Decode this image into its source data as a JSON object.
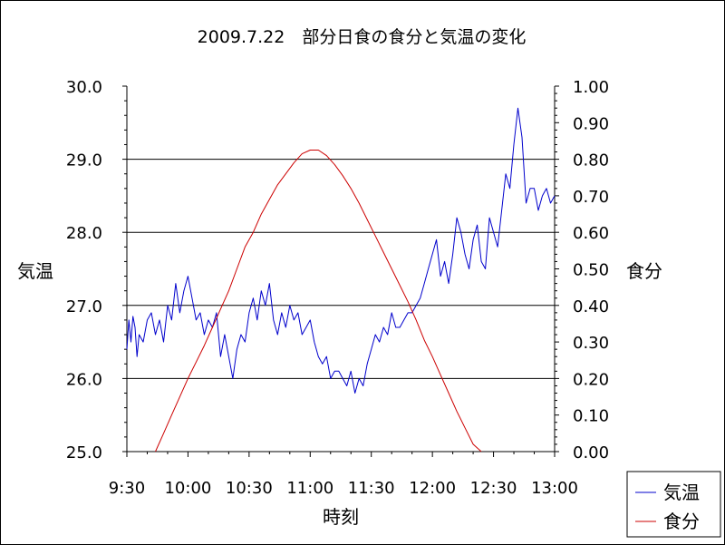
{
  "chart_data": {
    "type": "line",
    "title": "2009.7.22　部分日食の食分と気温の変化",
    "xlabel": "時刻",
    "y_left_label": "気温",
    "y_right_label": "食分",
    "x_ticks": [
      "9:30",
      "10:00",
      "10:30",
      "11:00",
      "11:30",
      "12:00",
      "12:30",
      "13:00"
    ],
    "x_range_minutes": [
      570,
      780
    ],
    "y_left_ticks": [
      "25.0",
      "26.0",
      "27.0",
      "28.0",
      "29.0",
      "30.0"
    ],
    "y_left_range": [
      25.0,
      30.0
    ],
    "y_right_ticks": [
      "0.00",
      "0.10",
      "0.20",
      "0.30",
      "0.40",
      "0.50",
      "0.60",
      "0.70",
      "0.80",
      "0.90",
      "1.00"
    ],
    "y_right_range": [
      0.0,
      1.0
    ],
    "grid": "horizontal at 26.0, 27.0, 28.0, 29.0",
    "legend_position": "bottom-right",
    "series": [
      {
        "name": "気温",
        "axis": "left",
        "color": "#0000cc",
        "x": [
          "9:30",
          "9:31",
          "9:32",
          "9:33",
          "9:34",
          "9:35",
          "9:36",
          "9:38",
          "9:40",
          "9:42",
          "9:44",
          "9:46",
          "9:48",
          "9:50",
          "9:52",
          "9:54",
          "9:56",
          "9:58",
          "10:00",
          "10:02",
          "10:04",
          "10:06",
          "10:08",
          "10:10",
          "10:12",
          "10:14",
          "10:16",
          "10:18",
          "10:20",
          "10:22",
          "10:24",
          "10:26",
          "10:28",
          "10:30",
          "10:32",
          "10:34",
          "10:36",
          "10:38",
          "10:40",
          "10:42",
          "10:44",
          "10:46",
          "10:48",
          "10:50",
          "10:52",
          "10:54",
          "10:56",
          "10:58",
          "11:00",
          "11:02",
          "11:04",
          "11:06",
          "11:08",
          "11:10",
          "11:12",
          "11:14",
          "11:16",
          "11:18",
          "11:20",
          "11:22",
          "11:24",
          "11:26",
          "11:28",
          "11:30",
          "11:32",
          "11:34",
          "11:36",
          "11:38",
          "11:40",
          "11:42",
          "11:44",
          "11:46",
          "11:48",
          "11:50",
          "11:52",
          "11:54",
          "11:56",
          "11:58",
          "12:00",
          "12:02",
          "12:04",
          "12:06",
          "12:08",
          "12:10",
          "12:12",
          "12:14",
          "12:16",
          "12:18",
          "12:20",
          "12:22",
          "12:24",
          "12:26",
          "12:28",
          "12:30",
          "12:32",
          "12:34",
          "12:36",
          "12:38",
          "12:40",
          "12:42",
          "12:44",
          "12:46",
          "12:48",
          "12:50",
          "12:52",
          "12:54",
          "12:56",
          "12:58",
          "13:00"
        ],
        "values": [
          26.4,
          26.8,
          26.5,
          26.85,
          26.7,
          26.3,
          26.6,
          26.5,
          26.8,
          26.9,
          26.6,
          26.8,
          26.5,
          27.0,
          26.8,
          27.3,
          26.9,
          27.2,
          27.4,
          27.1,
          26.8,
          26.9,
          26.6,
          26.8,
          26.7,
          26.9,
          26.3,
          26.6,
          26.3,
          26.0,
          26.4,
          26.6,
          26.5,
          26.9,
          27.1,
          26.8,
          27.2,
          27.0,
          27.3,
          26.8,
          26.6,
          26.9,
          26.7,
          27.0,
          26.8,
          26.9,
          26.6,
          26.7,
          26.8,
          26.5,
          26.3,
          26.2,
          26.3,
          26.0,
          26.1,
          26.1,
          26.0,
          25.9,
          26.1,
          25.8,
          26.0,
          25.9,
          26.2,
          26.4,
          26.6,
          26.5,
          26.7,
          26.6,
          26.9,
          26.7,
          26.7,
          26.8,
          26.9,
          26.9,
          27.0,
          27.1,
          27.3,
          27.5,
          27.7,
          27.9,
          27.4,
          27.6,
          27.3,
          27.7,
          28.2,
          28.0,
          27.7,
          27.5,
          27.9,
          28.1,
          27.6,
          27.5,
          28.2,
          28.0,
          27.8,
          28.3,
          28.8,
          28.6,
          29.2,
          29.7,
          29.3,
          28.4,
          28.6,
          28.6,
          28.3,
          28.5,
          28.6,
          28.4,
          28.5
        ]
      },
      {
        "name": "食分",
        "axis": "right",
        "color": "#cc0000",
        "x": [
          "9:44",
          "9:48",
          "9:52",
          "9:56",
          "10:00",
          "10:04",
          "10:08",
          "10:12",
          "10:16",
          "10:20",
          "10:24",
          "10:28",
          "10:32",
          "10:36",
          "10:40",
          "10:44",
          "10:48",
          "10:52",
          "10:56",
          "11:00",
          "11:02",
          "11:04",
          "11:08",
          "11:12",
          "11:16",
          "11:20",
          "11:24",
          "11:28",
          "11:32",
          "11:36",
          "11:40",
          "11:44",
          "11:48",
          "11:52",
          "11:56",
          "12:00",
          "12:04",
          "12:08",
          "12:12",
          "12:16",
          "12:20",
          "12:24"
        ],
        "values": [
          0.0,
          0.05,
          0.1,
          0.15,
          0.2,
          0.245,
          0.29,
          0.34,
          0.39,
          0.44,
          0.5,
          0.56,
          0.6,
          0.65,
          0.69,
          0.73,
          0.76,
          0.79,
          0.815,
          0.825,
          0.825,
          0.825,
          0.81,
          0.785,
          0.755,
          0.72,
          0.68,
          0.635,
          0.59,
          0.545,
          0.5,
          0.455,
          0.41,
          0.36,
          0.305,
          0.26,
          0.21,
          0.16,
          0.11,
          0.065,
          0.02,
          0.0
        ]
      }
    ]
  }
}
